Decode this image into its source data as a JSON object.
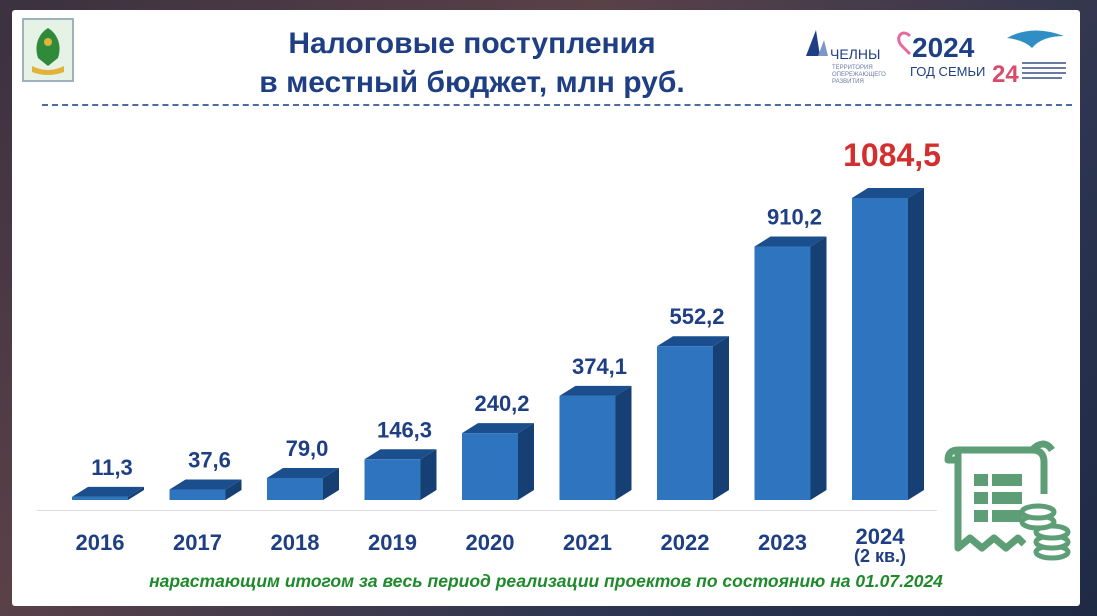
{
  "header": {
    "title_line1": "Налоговые поступления",
    "title_line2": "в местный бюджет, млн руб."
  },
  "partners": {
    "chelny_name": "ЧЕЛНЫ",
    "chelny_sub": [
      "ТЕРРИТОРИЯ",
      "ОПЕРЕЖАЮЩЕГО",
      "РАЗВИТИЯ"
    ],
    "family_year": "2024",
    "family_label": "ГОД СЕМЬИ",
    "tatarstan_year": "24"
  },
  "chart_data": {
    "type": "bar",
    "categories": [
      "2016",
      "2017",
      "2018",
      "2019",
      "2020",
      "2021",
      "2022",
      "2023",
      "2024"
    ],
    "category_sublabels": [
      "",
      "",
      "",
      "",
      "",
      "",
      "",
      "",
      "(2 кв.)"
    ],
    "values": [
      11.3,
      37.6,
      79.0,
      146.3,
      240.2,
      374.1,
      552.2,
      910.2,
      1084.5
    ],
    "data_labels": [
      "11,3",
      "37,6",
      "79,0",
      "146,3",
      "240,2",
      "374,1",
      "552,2",
      "910,2",
      "1084,5"
    ],
    "highlight_index": 8,
    "title": "Налоговые поступления в местный бюджет, млн руб.",
    "xlabel": "",
    "ylabel": "",
    "ylim": [
      0,
      1084.5
    ],
    "grid": false,
    "legend": "none"
  },
  "colors": {
    "bar_front": "#2e74be",
    "bar_top": "#1b4e8c",
    "bar_side": "#163f73",
    "label": "#1f3f84",
    "highlight": "#d32f2f",
    "footnote": "#1e8a2b",
    "icon": "#5e9e77"
  },
  "footer": {
    "note": "нарастающим итогом за весь период реализации проектов по состоянию на 01.07.2024"
  }
}
